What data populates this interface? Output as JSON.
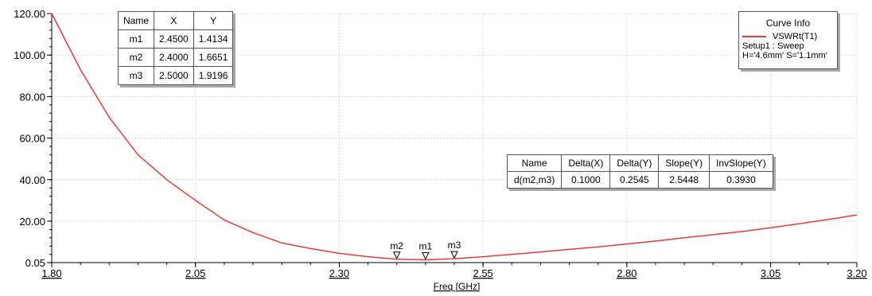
{
  "chart_data": {
    "type": "line",
    "xlabel": "Freq [GHz]",
    "ylabel": "",
    "xlim": [
      1.8,
      3.2
    ],
    "ylim": [
      0.05,
      120.0
    ],
    "x_ticks": [
      "1.80",
      "2.05",
      "2.30",
      "2.55",
      "2.80",
      "3.05",
      "3.20"
    ],
    "x_tick_values": [
      1.8,
      2.05,
      2.3,
      2.55,
      2.8,
      3.05,
      3.2
    ],
    "y_ticks": [
      "120.00",
      "100.00",
      "80.00",
      "60.00",
      "40.00",
      "20.00",
      "0.05"
    ],
    "y_tick_values": [
      120.0,
      100.0,
      80.0,
      60.0,
      40.0,
      20.0,
      0.05
    ],
    "grid": true,
    "series": [
      {
        "name": "VSWRt(T1)",
        "color": "#e8393b",
        "x": [
          1.8,
          1.85,
          1.9,
          1.95,
          2.0,
          2.05,
          2.1,
          2.15,
          2.2,
          2.25,
          2.3,
          2.35,
          2.4,
          2.45,
          2.5,
          2.55,
          2.6,
          2.65,
          2.7,
          2.75,
          2.8,
          2.85,
          2.9,
          2.95,
          3.0,
          3.05,
          3.1,
          3.15,
          3.2
        ],
        "y": [
          120.0,
          93.0,
          70.0,
          52.0,
          40.0,
          30.0,
          20.5,
          14.5,
          9.5,
          6.8,
          4.5,
          2.9,
          1.67,
          1.41,
          1.92,
          2.9,
          4.0,
          5.2,
          6.4,
          7.6,
          9.0,
          10.4,
          12.0,
          13.5,
          15.0,
          16.8,
          18.8,
          20.8,
          23.0
        ]
      }
    ],
    "markers": [
      {
        "name": "m2",
        "x": 2.4,
        "y": 1.6651
      },
      {
        "name": "m1",
        "x": 2.45,
        "y": 1.4134
      },
      {
        "name": "m3",
        "x": 2.5,
        "y": 1.9196
      }
    ]
  },
  "marker_table": {
    "headers": [
      "Name",
      "X",
      "Y"
    ],
    "rows": [
      [
        "m1",
        "2.4500",
        "1.4134"
      ],
      [
        "m2",
        "2.4000",
        "1.6651"
      ],
      [
        "m3",
        "2.5000",
        "1.9196"
      ]
    ]
  },
  "delta_table": {
    "headers": [
      "Name",
      "Delta(X)",
      "Delta(Y)",
      "Slope(Y)",
      "InvSlope(Y)"
    ],
    "rows": [
      [
        "d(m2,m3)",
        "0.1000",
        "0.2545",
        "2.5448",
        "0.3930"
      ]
    ]
  },
  "curve_info": {
    "title": "Curve Info",
    "trace_name": "VSWRt(T1)",
    "setup": "Setup1 : Sweep",
    "params": "H='4.6mm' S='1.1mm'"
  }
}
